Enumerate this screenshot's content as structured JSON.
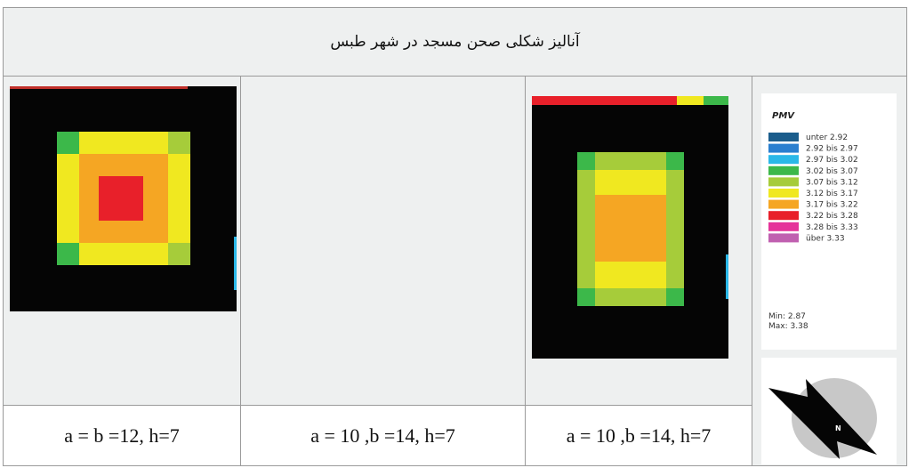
{
  "header": {
    "title": "آنالیز شکلی صحن مسجد در شهر طبس"
  },
  "legend": {
    "title": "PMV",
    "items": [
      {
        "label": "unter 2.92",
        "color": "#1b5d8c"
      },
      {
        "label": "2.92 bis 2.97",
        "color": "#2a7fcf"
      },
      {
        "label": "2.97 bis 3.02",
        "color": "#2ab8e8"
      },
      {
        "label": "3.02 bis 3.07",
        "color": "#3cb84a"
      },
      {
        "label": "3.07 bis 3.12",
        "color": "#a6cc3a"
      },
      {
        "label": "3.12 bis 3.17",
        "color": "#f0e820"
      },
      {
        "label": "3.17 bis 3.22",
        "color": "#f5a623"
      },
      {
        "label": "3.22 bis 3.28",
        "color": "#e8202a"
      },
      {
        "label": "3.28 bis 3.33",
        "color": "#e5339a"
      },
      {
        "label": "über 3.33",
        "color": "#c060b0"
      }
    ],
    "min": "Min: 2.87",
    "max": "Max: 3.38"
  },
  "compass": {
    "label": "N"
  },
  "captions": [
    "a = b =12, h=7",
    "a = 10 ,b =14, h=7",
    "a = 10 ,b =14, h=7"
  ]
}
